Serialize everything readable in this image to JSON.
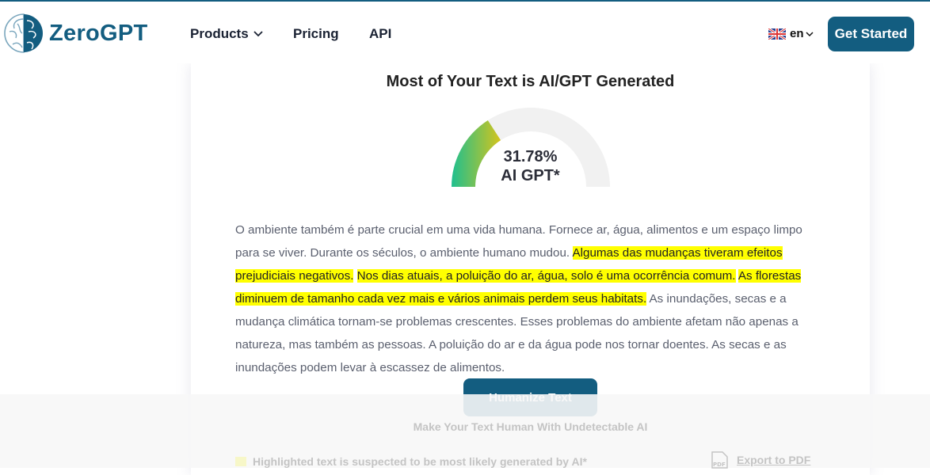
{
  "header": {
    "brand": "ZeroGPT",
    "nav": [
      {
        "label": "Products",
        "icon": "chevron-down-icon"
      },
      {
        "label": "Pricing"
      },
      {
        "label": "API"
      }
    ],
    "language": "en",
    "get_started": "Get Started"
  },
  "result": {
    "title": "Most of Your Text is AI/GPT Generated",
    "ai_percent": 31.78,
    "percent_label": "31.78%",
    "label": "AI GPT*",
    "colors": {
      "gauge_start": "#1fbf8f",
      "gauge_end": "#d4c41c",
      "gauge_track": "#f1f1f1",
      "highlight": "#ffff00",
      "brand": "#135d80"
    }
  },
  "text": {
    "segments": [
      {
        "text": "O ambiente também é parte crucial em uma vida humana. Fornece ar, água, alimentos e um espaço limpo para se viver. Durante os séculos, o ambiente humano mudou. ",
        "highlighted": false
      },
      {
        "text": "Algumas das mudanças tiveram efeitos prejudiciais negativos.",
        "highlighted": true
      },
      {
        "text": " ",
        "highlighted": false
      },
      {
        "text": "Nos dias atuais, a poluição do ar, água, solo é uma ocorrência comum.",
        "highlighted": true
      },
      {
        "text": " ",
        "highlighted": false
      },
      {
        "text": "As florestas diminuem de tamanho cada vez mais e vários animais perdem seus habitats.",
        "highlighted": true
      },
      {
        "text": " As inundações, secas e a mudança climática tornam-se problemas crescentes. Esses problemas do ambiente afetam não apenas a natureza, mas também as pessoas. A poluição do ar e da água pode nos tornar doentes. As secas e as inundações podem levar à escassez de alimentos.",
        "highlighted": false
      }
    ]
  },
  "actions": {
    "humanize": "Humanize Text",
    "humanize_sub": "Make Your Text Human With Undetectable AI",
    "legend": "Highlighted text is suspected to be most likely generated by AI*",
    "export": "Export to PDF"
  }
}
